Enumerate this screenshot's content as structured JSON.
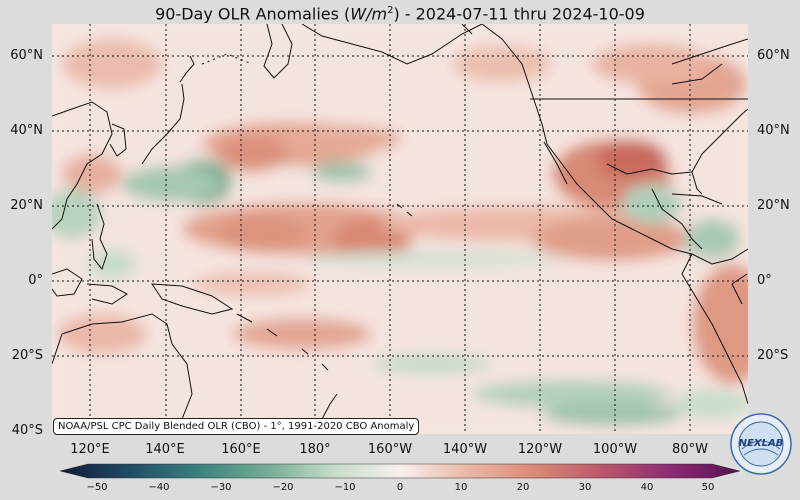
{
  "title": {
    "prefix": "90-Day OLR Anomalies (",
    "unit_var": "W/m",
    "unit_exp": "2",
    "suffix": ") - 2024-07-11 thru 2024-10-09"
  },
  "credit": "NOAA/PSL CPC Daily Blended OLR (CBO) - 1°, 1991-2020 CBO Anomaly",
  "lat_labels": [
    "60°N",
    "40°N",
    "20°N",
    "0°",
    "20°S",
    "40°S"
  ],
  "lon_labels": [
    "120°E",
    "140°E",
    "160°E",
    "180°",
    "160°W",
    "140°W",
    "120°W",
    "100°W",
    "80°W"
  ],
  "colorbar": {
    "ticks": [
      "−50",
      "−40",
      "−30",
      "−20",
      "−10",
      "0",
      "10",
      "20",
      "30",
      "40",
      "50"
    ],
    "colors": [
      "#101a3a",
      "#1f4a63",
      "#3a7f7e",
      "#72aa93",
      "#c3dcc8",
      "#f7efed",
      "#e9b7a6",
      "#d98a75",
      "#b9566a",
      "#8b2a74",
      "#55104f"
    ]
  },
  "logo_text": "NEXLAB"
}
